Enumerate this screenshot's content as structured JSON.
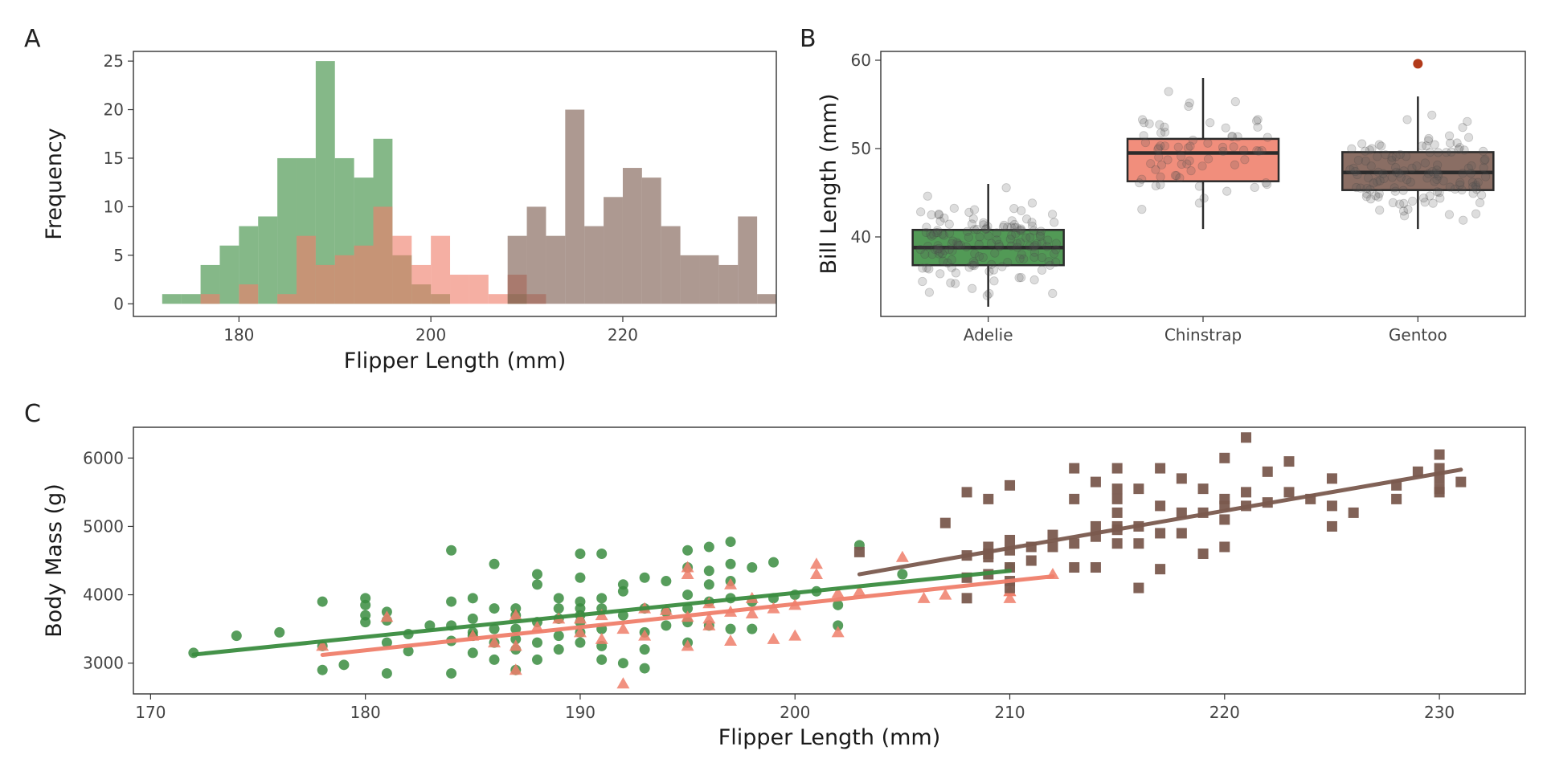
{
  "colors": {
    "adelie": "#3A8C3F",
    "chinstrap": "#EF7E6A",
    "gentoo": "#7A5A4E",
    "outlier": "#B23A1A",
    "jitter": "#555555"
  },
  "chart_data": [
    {
      "panel": "A",
      "type": "bar",
      "xlabel": "Flipper Length (mm)",
      "ylabel": "Frequency",
      "xlim": [
        169,
        236
      ],
      "ylim": [
        -1.3,
        26
      ],
      "xticks": [
        180,
        200,
        220
      ],
      "yticks": [
        0,
        5,
        10,
        15,
        20,
        25
      ],
      "bin_start": 172,
      "bin_width": 2,
      "series": [
        {
          "key": "adelie",
          "counts": [
            1,
            1,
            4,
            6,
            8,
            9,
            15,
            15,
            25,
            15,
            13,
            17,
            5,
            2,
            1,
            0,
            0,
            0,
            1
          ]
        },
        {
          "key": "chinstrap",
          "counts": [
            0,
            0,
            1,
            0,
            2,
            0,
            1,
            7,
            4,
            5,
            6,
            10,
            7,
            4,
            7,
            3,
            3,
            1,
            3,
            1
          ]
        },
        {
          "key": "gentoo",
          "counts": [
            0,
            0,
            0,
            0,
            0,
            0,
            0,
            0,
            0,
            0,
            0,
            0,
            0,
            0,
            0,
            0,
            0,
            0,
            7,
            10,
            7,
            20,
            8,
            11,
            14,
            13,
            8,
            5,
            5,
            4,
            9,
            1
          ]
        }
      ]
    },
    {
      "panel": "B",
      "type": "box",
      "ylabel": "Bill Length (mm)",
      "ylim": [
        31,
        61
      ],
      "yticks": [
        40,
        50,
        60
      ],
      "categories": [
        "Adelie",
        "Chinstrap",
        "Gentoo"
      ],
      "boxes": [
        {
          "key": "adelie",
          "q1": 36.8,
          "median": 38.8,
          "q3": 40.8,
          "whisker_low": 32.1,
          "whisker_high": 46.0,
          "outliers": []
        },
        {
          "key": "chinstrap",
          "q1": 46.3,
          "median": 49.5,
          "q3": 51.1,
          "whisker_low": 40.9,
          "whisker_high": 58.0,
          "outliers": []
        },
        {
          "key": "gentoo",
          "q1": 45.3,
          "median": 47.3,
          "q3": 49.6,
          "whisker_low": 40.9,
          "whisker_high": 55.9,
          "outliers": [
            59.6
          ]
        }
      ]
    },
    {
      "panel": "C",
      "type": "scatter",
      "xlabel": "Flipper Length (mm)",
      "ylabel": "Body Mass (g)",
      "xlim": [
        169.2,
        234
      ],
      "ylim": [
        2550,
        6450
      ],
      "xticks": [
        170,
        180,
        190,
        200,
        210,
        220,
        230
      ],
      "yticks": [
        3000,
        4000,
        5000,
        6000
      ],
      "series": [
        {
          "key": "adelie",
          "marker": "circle",
          "points": [
            [
              172,
              3150
            ],
            [
              174,
              3400
            ],
            [
              176,
              3450
            ],
            [
              178,
              3900
            ],
            [
              178,
              3250
            ],
            [
              178,
              2900
            ],
            [
              179,
              2975
            ],
            [
              180,
              3950
            ],
            [
              180,
              3850
            ],
            [
              180,
              3700
            ],
            [
              180,
              3600
            ],
            [
              181,
              3750
            ],
            [
              181,
              3300
            ],
            [
              181,
              2850
            ],
            [
              181,
              3625
            ],
            [
              182,
              3425
            ],
            [
              182,
              3175
            ],
            [
              183,
              3550
            ],
            [
              184,
              4650
            ],
            [
              184,
              3900
            ],
            [
              184,
              3550
            ],
            [
              184,
              3325
            ],
            [
              184,
              2850
            ],
            [
              185,
              3950
            ],
            [
              185,
              3650
            ],
            [
              185,
              3400
            ],
            [
              185,
              3150
            ],
            [
              185,
              3450
            ],
            [
              186,
              4450
            ],
            [
              186,
              3800
            ],
            [
              186,
              3500
            ],
            [
              186,
              3300
            ],
            [
              186,
              3050
            ],
            [
              187,
              3800
            ],
            [
              187,
              3700
            ],
            [
              187,
              3500
            ],
            [
              187,
              3200
            ],
            [
              187,
              2900
            ],
            [
              187,
              3350
            ],
            [
              188,
              4300
            ],
            [
              188,
              4150
            ],
            [
              188,
              3600
            ],
            [
              188,
              3300
            ],
            [
              188,
              3050
            ],
            [
              189,
              3950
            ],
            [
              189,
              3800
            ],
            [
              189,
              3650
            ],
            [
              189,
              3400
            ],
            [
              189,
              3200
            ],
            [
              190,
              4600
            ],
            [
              190,
              4250
            ],
            [
              190,
              3900
            ],
            [
              190,
              3800
            ],
            [
              190,
              3700
            ],
            [
              190,
              3600
            ],
            [
              190,
              3450
            ],
            [
              190,
              3300
            ],
            [
              191,
              4600
            ],
            [
              191,
              3950
            ],
            [
              191,
              3800
            ],
            [
              191,
              3500
            ],
            [
              191,
              3250
            ],
            [
              191,
              3050
            ],
            [
              192,
              4150
            ],
            [
              192,
              4050
            ],
            [
              192,
              3700
            ],
            [
              192,
              3000
            ],
            [
              193,
              4250
            ],
            [
              193,
              3800
            ],
            [
              193,
              3450
            ],
            [
              193,
              3200
            ],
            [
              193,
              2925
            ],
            [
              194,
              4200
            ],
            [
              194,
              3750
            ],
            [
              194,
              3550
            ],
            [
              195,
              4650
            ],
            [
              195,
              4400
            ],
            [
              195,
              4000
            ],
            [
              195,
              3800
            ],
            [
              195,
              3600
            ],
            [
              195,
              3300
            ],
            [
              196,
              4700
            ],
            [
              196,
              4350
            ],
            [
              196,
              4150
            ],
            [
              196,
              3900
            ],
            [
              196,
              3550
            ],
            [
              197,
              4775
            ],
            [
              197,
              4450
            ],
            [
              197,
              4200
            ],
            [
              197,
              3950
            ],
            [
              197,
              3500
            ],
            [
              198,
              4400
            ],
            [
              198,
              3900
            ],
            [
              198,
              3500
            ],
            [
              199,
              4475
            ],
            [
              199,
              3950
            ],
            [
              200,
              4000
            ],
            [
              201,
              4050
            ],
            [
              202,
              3850
            ],
            [
              202,
              3550
            ],
            [
              203,
              4725
            ],
            [
              205,
              4300
            ],
            [
              210,
              4400
            ]
          ]
        },
        {
          "key": "chinstrap",
          "marker": "triangle",
          "points": [
            [
              178,
              3250
            ],
            [
              181,
              3675
            ],
            [
              185,
              3400
            ],
            [
              186,
              3300
            ],
            [
              187,
              3700
            ],
            [
              187,
              3250
            ],
            [
              187,
              2900
            ],
            [
              188,
              3525
            ],
            [
              189,
              3650
            ],
            [
              190,
              3650
            ],
            [
              190,
              3450
            ],
            [
              191,
              3700
            ],
            [
              191,
              3350
            ],
            [
              192,
              2700
            ],
            [
              192,
              3500
            ],
            [
              193,
              3800
            ],
            [
              193,
              3400
            ],
            [
              194,
              3775
            ],
            [
              195,
              4300
            ],
            [
              195,
              4400
            ],
            [
              195,
              3250
            ],
            [
              195,
              3675
            ],
            [
              196,
              3550
            ],
            [
              196,
              3650
            ],
            [
              196,
              3875
            ],
            [
              197,
              4150
            ],
            [
              197,
              3750
            ],
            [
              197,
              3325
            ],
            [
              198,
              3950
            ],
            [
              198,
              3725
            ],
            [
              199,
              3800
            ],
            [
              199,
              3350
            ],
            [
              200,
              3850
            ],
            [
              200,
              3400
            ],
            [
              201,
              4450
            ],
            [
              201,
              4300
            ],
            [
              202,
              4025
            ],
            [
              202,
              3450
            ],
            [
              203,
              4050
            ],
            [
              205,
              4550
            ],
            [
              206,
              3950
            ],
            [
              207,
              4000
            ],
            [
              210,
              4050
            ],
            [
              210,
              4050
            ],
            [
              210,
              3950
            ],
            [
              212,
              4300
            ]
          ]
        },
        {
          "key": "gentoo",
          "marker": "square",
          "points": [
            [
              203,
              4625
            ],
            [
              207,
              5050
            ],
            [
              208,
              5500
            ],
            [
              208,
              4575
            ],
            [
              208,
              4250
            ],
            [
              208,
              3950
            ],
            [
              209,
              5400
            ],
            [
              209,
              4700
            ],
            [
              209,
              4600
            ],
            [
              209,
              4550
            ],
            [
              209,
              4300
            ],
            [
              210,
              5600
            ],
            [
              210,
              4800
            ],
            [
              210,
              4650
            ],
            [
              210,
              4400
            ],
            [
              210,
              4200
            ],
            [
              210,
              4100
            ],
            [
              211,
              4500
            ],
            [
              211,
              4700
            ],
            [
              212,
              4875
            ],
            [
              212,
              4700
            ],
            [
              213,
              5850
            ],
            [
              213,
              5400
            ],
            [
              213,
              4750
            ],
            [
              213,
              4400
            ],
            [
              214,
              5650
            ],
            [
              214,
              5000
            ],
            [
              214,
              4850
            ],
            [
              214,
              4400
            ],
            [
              215,
              5850
            ],
            [
              215,
              5550
            ],
            [
              215,
              5400
            ],
            [
              215,
              5200
            ],
            [
              215,
              5000
            ],
            [
              215,
              4950
            ],
            [
              215,
              4750
            ],
            [
              216,
              5550
            ],
            [
              216,
              5000
            ],
            [
              216,
              4750
            ],
            [
              216,
              4100
            ],
            [
              217,
              5850
            ],
            [
              217,
              5300
            ],
            [
              217,
              4900
            ],
            [
              217,
              4375
            ],
            [
              218,
              5700
            ],
            [
              218,
              5200
            ],
            [
              218,
              4900
            ],
            [
              219,
              5550
            ],
            [
              219,
              5200
            ],
            [
              219,
              4600
            ],
            [
              220,
              6000
            ],
            [
              220,
              5400
            ],
            [
              220,
              5300
            ],
            [
              220,
              5100
            ],
            [
              220,
              4700
            ],
            [
              221,
              6300
            ],
            [
              221,
              5500
            ],
            [
              221,
              5300
            ],
            [
              222,
              5800
            ],
            [
              222,
              5350
            ],
            [
              223,
              5950
            ],
            [
              223,
              5500
            ],
            [
              224,
              5400
            ],
            [
              225,
              5700
            ],
            [
              225,
              5300
            ],
            [
              225,
              5000
            ],
            [
              226,
              5200
            ],
            [
              228,
              5600
            ],
            [
              228,
              5400
            ],
            [
              229,
              5800
            ],
            [
              230,
              6050
            ],
            [
              230,
              5850
            ],
            [
              230,
              5700
            ],
            [
              230,
              5550
            ],
            [
              230,
              5500
            ],
            [
              231,
              5650
            ]
          ]
        }
      ],
      "fits": [
        {
          "key": "adelie",
          "x": [
            172,
            210
          ],
          "y": [
            3125,
            4350
          ]
        },
        {
          "key": "chinstrap",
          "x": [
            178,
            212
          ],
          "y": [
            3120,
            4270
          ]
        },
        {
          "key": "gentoo",
          "x": [
            203,
            231
          ],
          "y": [
            4300,
            5830
          ]
        }
      ]
    }
  ],
  "panel_tags": [
    "A",
    "B",
    "C"
  ]
}
